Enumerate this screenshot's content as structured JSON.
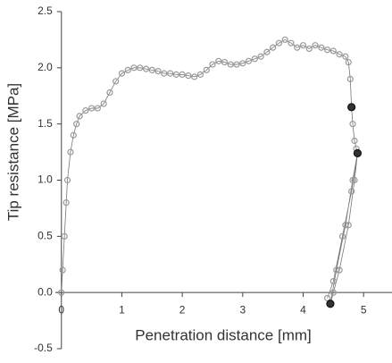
{
  "chart_data": {
    "type": "scatter",
    "xlabel": "Penetration distance [mm]",
    "ylabel": "Tip resistance [MPa]",
    "xlim": [
      -0.1,
      5.47
    ],
    "ylim": [
      -0.5,
      2.5
    ],
    "xticks": [
      0,
      1,
      2,
      3,
      4,
      5
    ],
    "yticks": [
      -0.5,
      {
        "value": 0,
        "label": "0.0"
      },
      0.5,
      {
        "value": 1,
        "label": "1.0"
      },
      1.5,
      {
        "value": 2,
        "label": "2.0"
      },
      2.5
    ],
    "series": [
      {
        "color": "#999999",
        "x": [
          0,
          0.02,
          0.05,
          0.08,
          0.1,
          0.15,
          0.2,
          0.25,
          0.3,
          0.4,
          0.5,
          0.6,
          0.7,
          0.8,
          0.9,
          1.0,
          1.1,
          1.2,
          1.3,
          1.4,
          1.5,
          1.6,
          1.7,
          1.8,
          1.9,
          2.0,
          2.1,
          2.2,
          2.3,
          2.4,
          2.5,
          2.6,
          2.7,
          2.8,
          2.9,
          3.0,
          3.1,
          3.2,
          3.3,
          3.4,
          3.5,
          3.6,
          3.7,
          3.8,
          3.9,
          4.0,
          4.1,
          4.2,
          4.3,
          4.4,
          4.5,
          4.6,
          4.7,
          4.75,
          4.78,
          4.8,
          4.82,
          4.85,
          4.88,
          4.9,
          4.85,
          4.75,
          4.6,
          4.5,
          4.45,
          4.55,
          4.7,
          4.82,
          4.9,
          4.8,
          4.65,
          4.5,
          4.4
        ],
        "values": [
          0,
          0.2,
          0.5,
          0.8,
          1.0,
          1.25,
          1.4,
          1.5,
          1.57,
          1.62,
          1.64,
          1.64,
          1.68,
          1.78,
          1.88,
          1.95,
          1.98,
          2.0,
          2.0,
          1.99,
          1.98,
          1.97,
          1.95,
          1.95,
          1.94,
          1.94,
          1.93,
          1.92,
          1.94,
          1.98,
          2.03,
          2.06,
          2.05,
          2.03,
          2.03,
          2.04,
          2.06,
          2.08,
          2.1,
          2.14,
          2.18,
          2.22,
          2.25,
          2.22,
          2.18,
          2.2,
          2.17,
          2.2,
          2.18,
          2.16,
          2.15,
          2.12,
          2.1,
          2.05,
          1.9,
          1.65,
          1.5,
          1.35,
          1.28,
          1.24,
          1.0,
          0.6,
          0.2,
          0.0,
          -0.1,
          0.2,
          0.6,
          1.0,
          1.24,
          0.9,
          0.5,
          0.1,
          -0.05
        ]
      },
      {
        "color": "#333333",
        "x": [
          4.8,
          4.9,
          4.45
        ],
        "values": [
          1.65,
          1.24,
          -0.1
        ]
      }
    ]
  }
}
